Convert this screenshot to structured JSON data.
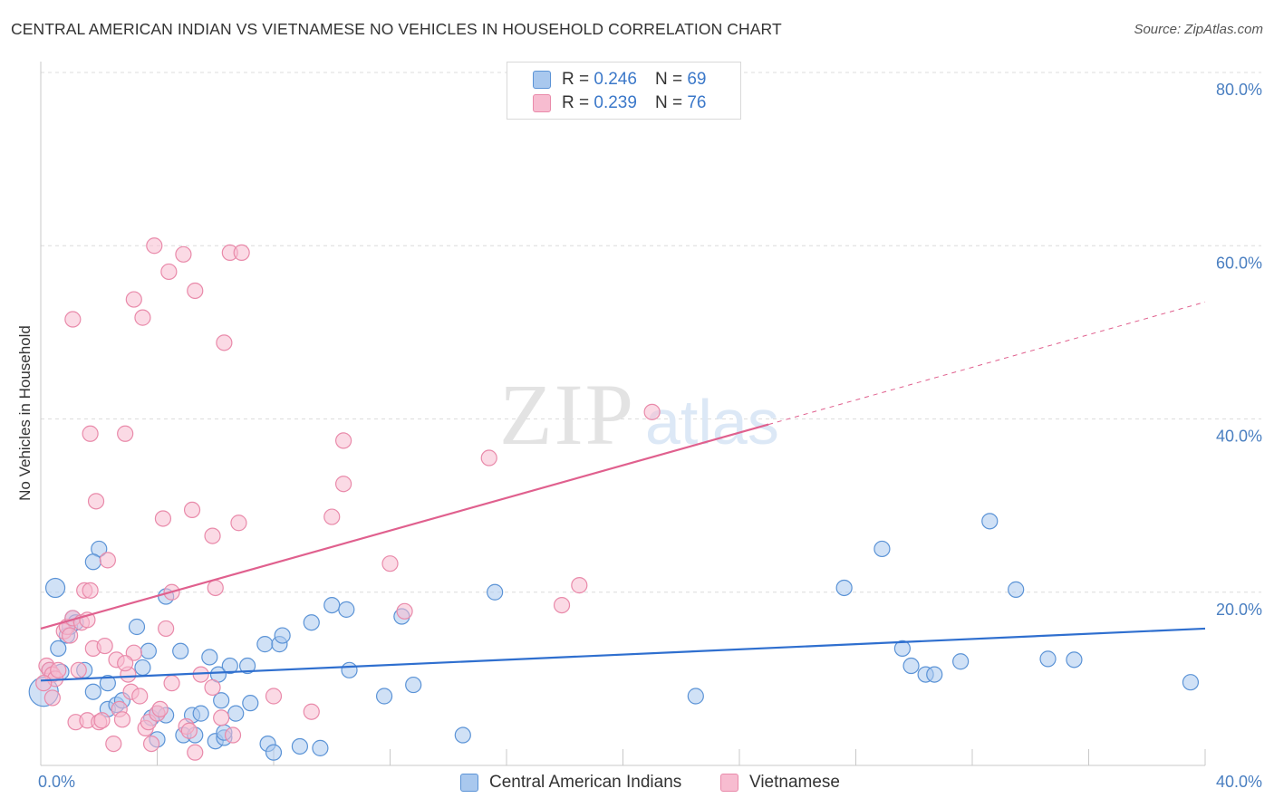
{
  "title": "CENTRAL AMERICAN INDIAN VS VIETNAMESE NO VEHICLES IN HOUSEHOLD CORRELATION CHART",
  "source": "Source: ZipAtlas.com",
  "watermark": {
    "zip": "ZIP",
    "atlas": "atlas"
  },
  "legend": {
    "rows": [
      {
        "r_label": "R =",
        "r_value": "0.246",
        "n_label": "N =",
        "n_value": "69"
      },
      {
        "r_label": "R =",
        "r_value": "0.239",
        "n_label": "N =",
        "n_value": "76"
      }
    ]
  },
  "bottom_legend": [
    "Central American Indians",
    "Vietnamese"
  ],
  "colors": {
    "blue_fill": "#a9c8ee",
    "blue_stroke": "#5b93d6",
    "blue_line": "#2f6fcf",
    "pink_fill": "#f7bcd0",
    "pink_stroke": "#e98aaa",
    "pink_line": "#e0608e",
    "tick": "#4a7fc1",
    "grid": "#dcdcdc"
  },
  "chart_data": {
    "type": "scatter",
    "title": "CENTRAL AMERICAN INDIAN VS VIETNAMESE NO VEHICLES IN HOUSEHOLD CORRELATION CHART",
    "xlabel": "",
    "ylabel": "No Vehicles in Household",
    "xlim": [
      0,
      40
    ],
    "ylim": [
      0,
      80
    ],
    "x_tick_labels": [
      "0.0%",
      "40.0%"
    ],
    "y_tick_labels": [
      "20.0%",
      "40.0%",
      "60.0%",
      "80.0%"
    ],
    "y_ticks": [
      20,
      40,
      60,
      80
    ],
    "grid": true,
    "series": [
      {
        "name": "Central American Indians",
        "r": 0.246,
        "n": 69,
        "trend": {
          "x": [
            0,
            40
          ],
          "y": [
            9.8,
            15.8
          ],
          "dashed_from": null
        },
        "points": [
          [
            0.1,
            8.5
          ],
          [
            0.3,
            11
          ],
          [
            0.5,
            20.5
          ],
          [
            0.6,
            13.5
          ],
          [
            0.7,
            10.8
          ],
          [
            0.9,
            15
          ],
          [
            1.0,
            16
          ],
          [
            1.1,
            17
          ],
          [
            1.2,
            16.5
          ],
          [
            1.5,
            11
          ],
          [
            1.8,
            8.5
          ],
          [
            2.0,
            25
          ],
          [
            1.8,
            23.5
          ],
          [
            2.3,
            9.5
          ],
          [
            2.3,
            6.5
          ],
          [
            2.6,
            7
          ],
          [
            2.8,
            7.5
          ],
          [
            3.3,
            16
          ],
          [
            3.5,
            11.3
          ],
          [
            3.7,
            13.2
          ],
          [
            3.8,
            5.5
          ],
          [
            4.0,
            6
          ],
          [
            4.0,
            3
          ],
          [
            4.3,
            5.8
          ],
          [
            4.3,
            19.5
          ],
          [
            4.8,
            13.2
          ],
          [
            4.9,
            3.5
          ],
          [
            5.2,
            5.8
          ],
          [
            5.3,
            3.5
          ],
          [
            5.5,
            6
          ],
          [
            5.8,
            12.5
          ],
          [
            6.0,
            2.8
          ],
          [
            6.1,
            10.5
          ],
          [
            6.2,
            7.5
          ],
          [
            6.3,
            3.2
          ],
          [
            6.3,
            3.8
          ],
          [
            6.5,
            11.5
          ],
          [
            6.7,
            6
          ],
          [
            7.1,
            11.5
          ],
          [
            7.2,
            7.2
          ],
          [
            7.7,
            14
          ],
          [
            7.8,
            2.5
          ],
          [
            8.0,
            1.5
          ],
          [
            8.2,
            14
          ],
          [
            8.3,
            15
          ],
          [
            8.9,
            2.2
          ],
          [
            9.3,
            16.5
          ],
          [
            9.6,
            2
          ],
          [
            10.0,
            18.5
          ],
          [
            10.5,
            18
          ],
          [
            10.6,
            11
          ],
          [
            11.8,
            8
          ],
          [
            12.4,
            17.2
          ],
          [
            12.8,
            9.3
          ],
          [
            14.5,
            3.5
          ],
          [
            15.6,
            20
          ],
          [
            22.5,
            8
          ],
          [
            27.6,
            20.5
          ],
          [
            28.9,
            25
          ],
          [
            29.6,
            13.5
          ],
          [
            29.9,
            11.5
          ],
          [
            30.4,
            10.5
          ],
          [
            30.7,
            10.5
          ],
          [
            31.6,
            12
          ],
          [
            32.6,
            28.2
          ],
          [
            33.5,
            20.3
          ],
          [
            34.6,
            12.3
          ],
          [
            35.5,
            12.2
          ],
          [
            39.5,
            9.6
          ]
        ]
      },
      {
        "name": "Vietnamese",
        "r": 0.239,
        "n": 76,
        "trend": {
          "x": [
            0,
            40
          ],
          "y": [
            15.8,
            53.5
          ],
          "dashed_from": 25
        },
        "points": [
          [
            0.2,
            11.5
          ],
          [
            0.3,
            11
          ],
          [
            0.4,
            10.5
          ],
          [
            0.5,
            10
          ],
          [
            0.6,
            11
          ],
          [
            0.8,
            15.5
          ],
          [
            0.9,
            16
          ],
          [
            1.0,
            15
          ],
          [
            1.1,
            17
          ],
          [
            1.1,
            51.5
          ],
          [
            1.2,
            5
          ],
          [
            1.3,
            11
          ],
          [
            1.4,
            16.5
          ],
          [
            1.5,
            20.2
          ],
          [
            1.6,
            5.2
          ],
          [
            1.7,
            20.2
          ],
          [
            1.7,
            38.3
          ],
          [
            1.8,
            13.5
          ],
          [
            1.9,
            30.5
          ],
          [
            2.0,
            5
          ],
          [
            2.1,
            5.2
          ],
          [
            2.2,
            13.8
          ],
          [
            2.3,
            23.7
          ],
          [
            2.5,
            2.5
          ],
          [
            2.6,
            12.2
          ],
          [
            2.7,
            6.5
          ],
          [
            2.8,
            5.3
          ],
          [
            2.9,
            38.3
          ],
          [
            3.0,
            10.5
          ],
          [
            3.1,
            8.5
          ],
          [
            3.2,
            53.8
          ],
          [
            3.2,
            13
          ],
          [
            3.4,
            8
          ],
          [
            3.5,
            51.7
          ],
          [
            3.6,
            4.3
          ],
          [
            3.7,
            5
          ],
          [
            3.8,
            2.5
          ],
          [
            3.9,
            60
          ],
          [
            4.0,
            6
          ],
          [
            4.1,
            6.5
          ],
          [
            4.2,
            28.5
          ],
          [
            4.3,
            15.8
          ],
          [
            4.4,
            57
          ],
          [
            4.5,
            20
          ],
          [
            4.5,
            9.5
          ],
          [
            4.9,
            59
          ],
          [
            5.0,
            4.5
          ],
          [
            5.1,
            4
          ],
          [
            5.2,
            29.5
          ],
          [
            5.3,
            54.8
          ],
          [
            5.3,
            1.5
          ],
          [
            5.5,
            10.5
          ],
          [
            5.9,
            9
          ],
          [
            5.9,
            26.5
          ],
          [
            6.0,
            20.5
          ],
          [
            6.2,
            5.5
          ],
          [
            6.3,
            48.8
          ],
          [
            6.5,
            59.2
          ],
          [
            6.6,
            3.5
          ],
          [
            6.8,
            28
          ],
          [
            6.9,
            59.2
          ],
          [
            8.0,
            8
          ],
          [
            9.3,
            6.2
          ],
          [
            10.0,
            28.7
          ],
          [
            10.4,
            37.5
          ],
          [
            10.4,
            32.5
          ],
          [
            12.0,
            23.3
          ],
          [
            12.5,
            17.8
          ],
          [
            15.4,
            35.5
          ],
          [
            17.9,
            18.5
          ],
          [
            18.5,
            20.8
          ],
          [
            21.0,
            40.8
          ],
          [
            0.1,
            9.5
          ],
          [
            0.4,
            7.8
          ],
          [
            1.6,
            16.8
          ],
          [
            2.9,
            11.8
          ]
        ]
      }
    ]
  }
}
